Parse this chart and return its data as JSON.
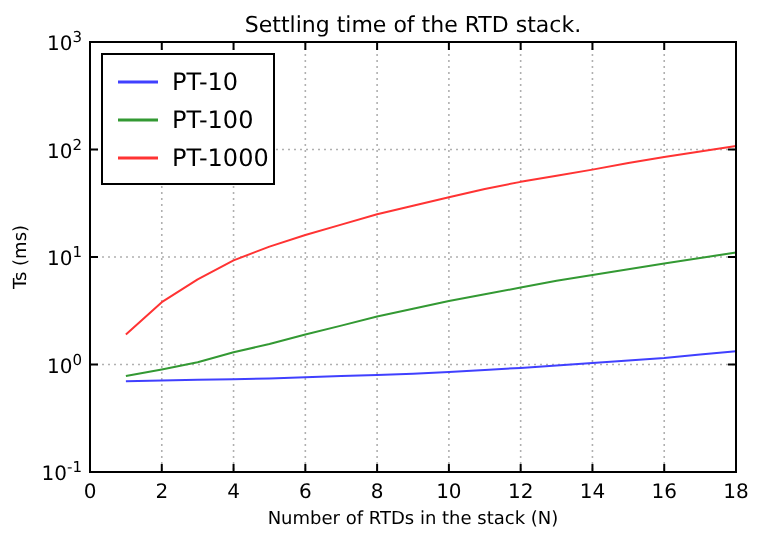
{
  "chart_data": {
    "type": "line",
    "title": "Settling time of the RTD stack.",
    "xlabel": "Number of RTDs in the stack (N)",
    "ylabel": "Ts (ms)",
    "x": [
      1,
      2,
      3,
      4,
      5,
      6,
      7,
      8,
      9,
      10,
      11,
      12,
      13,
      14,
      15,
      16,
      17,
      18
    ],
    "series": [
      {
        "name": "PT-10",
        "color": "#4040ff",
        "values": [
          0.7,
          0.71,
          0.72,
          0.73,
          0.74,
          0.76,
          0.78,
          0.8,
          0.82,
          0.85,
          0.89,
          0.93,
          0.98,
          1.03,
          1.09,
          1.15,
          1.24,
          1.33
        ]
      },
      {
        "name": "PT-100",
        "color": "#339933",
        "values": [
          0.78,
          0.9,
          1.05,
          1.3,
          1.55,
          1.9,
          2.3,
          2.8,
          3.3,
          3.9,
          4.5,
          5.2,
          6,
          6.8,
          7.7,
          8.7,
          9.8,
          11
        ]
      },
      {
        "name": "PT-1000",
        "color": "#ff3333",
        "values": [
          1.9,
          3.8,
          6.2,
          9.3,
          12.5,
          16,
          20,
          25,
          30,
          36,
          43,
          50,
          57,
          65,
          75,
          85,
          96,
          108
        ]
      }
    ],
    "xlim": [
      0,
      18
    ],
    "xticks": [
      0,
      2,
      4,
      6,
      8,
      10,
      12,
      14,
      16,
      18
    ],
    "ylim": [
      0.1,
      1000
    ],
    "yticks": [
      {
        "value": 0.1,
        "label": "10$^{-1}$"
      },
      {
        "value": 1,
        "label": "10$^{0}$"
      },
      {
        "value": 10,
        "label": "10$^{1}$"
      },
      {
        "value": 100,
        "label": "10$^{2}$"
      },
      {
        "value": 1000,
        "label": "10$^{3}$"
      }
    ],
    "log": "y",
    "grid": true,
    "legend": "top left",
    "marker": "none",
    "line_style": "solid"
  }
}
